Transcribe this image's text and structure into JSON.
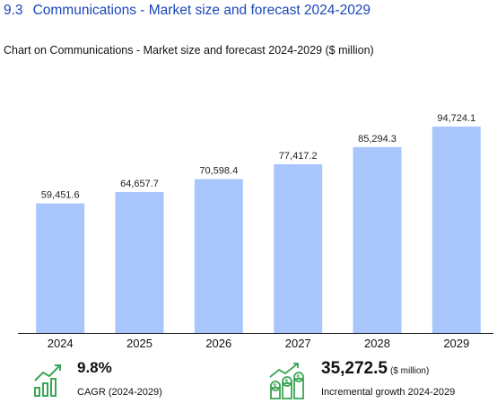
{
  "header": {
    "section_number": "9.3",
    "title": "Communications - Market size and forecast 2024-2029"
  },
  "subtitle": "Chart on Communications - Market size and forecast 2024-2029 ($ million)",
  "chart_data": {
    "type": "bar",
    "title": "Chart on Communications - Market size and forecast 2024-2029 ($ million)",
    "categories": [
      "2024",
      "2025",
      "2026",
      "2027",
      "2028",
      "2029"
    ],
    "values": [
      59451.6,
      64657.7,
      70598.4,
      77417.2,
      85294.3,
      94724.1
    ],
    "value_labels": [
      "59,451.6",
      "64,657.7",
      "70,598.4",
      "77,417.2",
      "85,294.3",
      "94,724.1"
    ],
    "xlabel": "",
    "ylabel": "",
    "ylim": [
      0,
      100000
    ],
    "grid": false,
    "bar_color": "#a9c6fc"
  },
  "kpis": {
    "cagr": {
      "value": "9.8%",
      "label": "CAGR (2024-2029)",
      "icon": "growth-chart-icon"
    },
    "incremental": {
      "value": "35,272.5",
      "unit": "($ million)",
      "label": "Incremental growth 2024-2029",
      "icon": "money-growth-icon"
    }
  },
  "colors": {
    "heading": "#1a47b8",
    "accent_green": "#3aa655",
    "bar": "#a9c6fc"
  }
}
